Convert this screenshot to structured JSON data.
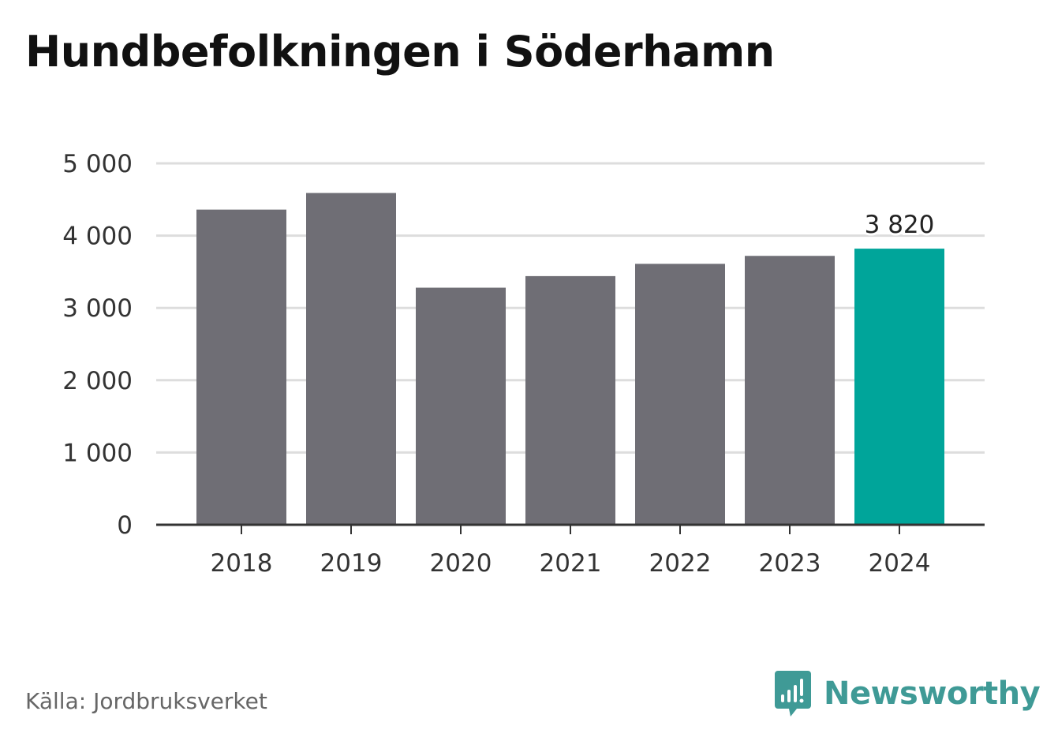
{
  "title": "Hundbefolkningen i Söderhamn",
  "source": "Källa: Jordbruksverket",
  "brand": {
    "name": "Newsworthy",
    "icon": "newsworthy-logo-icon",
    "color": "#3f9a96"
  },
  "chart_data": {
    "type": "bar",
    "categories": [
      "2018",
      "2019",
      "2020",
      "2021",
      "2022",
      "2023",
      "2024"
    ],
    "values": [
      4360,
      4590,
      3280,
      3440,
      3610,
      3720,
      3820
    ],
    "highlight_index": 6,
    "data_labels": [
      {
        "index": 6,
        "text": "3 820"
      }
    ],
    "yticks": [
      0,
      1000,
      2000,
      3000,
      4000,
      5000
    ],
    "ytick_labels": [
      "0",
      "1 000",
      "2 000",
      "3 000",
      "4 000",
      "5 000"
    ],
    "ylim": [
      0,
      5000
    ],
    "grid": true,
    "colors": {
      "bar": "#6f6e75",
      "highlight": "#00a59a",
      "grid": "#dddddd",
      "axis": "#333333"
    }
  }
}
